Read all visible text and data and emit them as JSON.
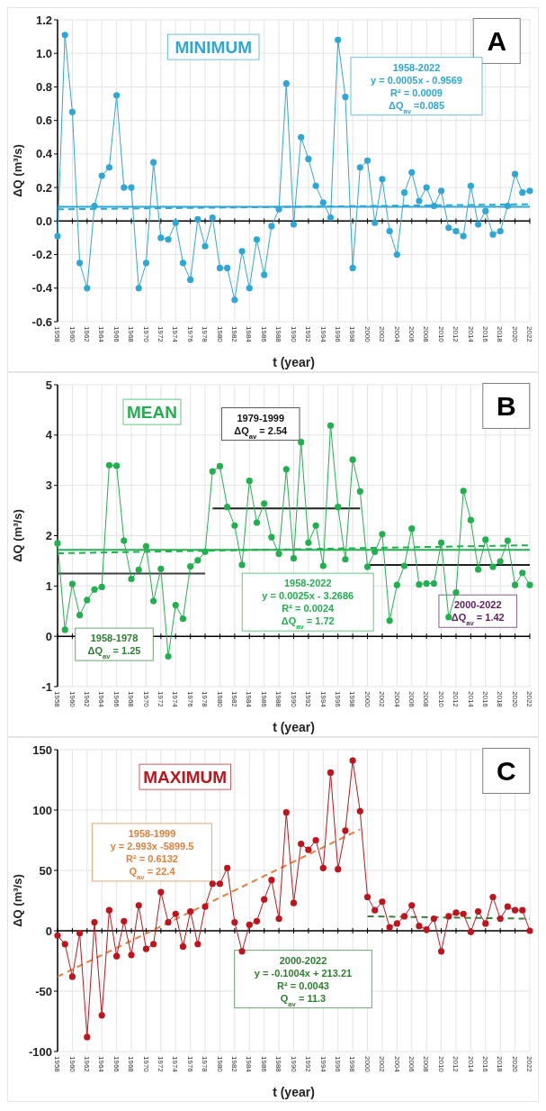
{
  "chart_data": [
    {
      "type": "line",
      "title": "MINIMUM",
      "xlabel": "t (year)",
      "ylabel": "ΔQ (m³/s)",
      "x": [
        1958,
        1959,
        1960,
        1961,
        1962,
        1963,
        1964,
        1965,
        1966,
        1967,
        1968,
        1969,
        1970,
        1971,
        1972,
        1973,
        1974,
        1975,
        1976,
        1977,
        1978,
        1979,
        1980,
        1981,
        1982,
        1983,
        1984,
        1985,
        1986,
        1987,
        1988,
        1989,
        1990,
        1991,
        1992,
        1993,
        1994,
        1995,
        1996,
        1997,
        1998,
        1999,
        2000,
        2001,
        2002,
        2003,
        2004,
        2005,
        2006,
        2007,
        2008,
        2009,
        2010,
        2011,
        2012,
        2013,
        2014,
        2015,
        2016,
        2017,
        2018,
        2019,
        2020,
        2021,
        2022
      ],
      "series": [
        {
          "color": "#2fa7d6",
          "values": [
            -0.09,
            1.11,
            0.65,
            -0.25,
            -0.4,
            0.09,
            0.27,
            0.32,
            0.75,
            0.2,
            0.2,
            -0.4,
            -0.25,
            0.35,
            -0.1,
            -0.11,
            -0.01,
            -0.25,
            -0.35,
            0.01,
            -0.15,
            0.02,
            -0.28,
            -0.28,
            -0.47,
            -0.18,
            -0.4,
            -0.11,
            -0.32,
            -0.03,
            0.07,
            0.82,
            -0.02,
            0.5,
            0.37,
            0.21,
            0.11,
            0.02,
            1.08,
            0.74,
            -0.28,
            0.32,
            0.36,
            -0.01,
            0.25,
            -0.06,
            -0.2,
            0.17,
            0.29,
            0.12,
            0.2,
            0.09,
            0.18,
            -0.04,
            -0.06,
            -0.09,
            0.21,
            -0.02,
            0.06,
            -0.08,
            -0.06,
            0.09,
            0.28,
            0.17,
            0.18
          ]
        },
        {
          "type": "line",
          "color": "#2fa7d6",
          "x": [
            1958,
            2022
          ],
          "values": [
            0.07,
            0.1
          ],
          "marker": "none",
          "line_style": "dashed"
        }
      ],
      "ref_lines": [
        {
          "axis": "y",
          "value": 0.085,
          "color": "#2fa7d6"
        }
      ],
      "annotations": [
        "A",
        "1958-2022\ny = 0.0005x - 0.9569\nR² = 0.0009\nΔQ$_{av}$ =0.085"
      ],
      "xlim": [
        1958,
        2022
      ],
      "xticks": [
        1958,
        1960,
        1962,
        1964,
        1966,
        1968,
        1970,
        1972,
        1974,
        1976,
        1978,
        1980,
        1982,
        1984,
        1986,
        1988,
        1990,
        1992,
        1994,
        1996,
        1998,
        2000,
        2002,
        2004,
        2006,
        2008,
        2010,
        2012,
        2014,
        2016,
        2018,
        2020,
        2022
      ],
      "ylim": [
        -0.6,
        1.2
      ],
      "yticks": [
        {
          "value": -0.6,
          "label": "-0.6"
        },
        {
          "value": -0.4,
          "label": "-0.4"
        },
        {
          "value": -0.2,
          "label": "-0.2"
        },
        {
          "value": 0,
          "label": "0.0"
        },
        {
          "value": 0.2,
          "label": "0.2"
        },
        {
          "value": 0.4,
          "label": "0.4"
        },
        {
          "value": 0.6,
          "label": "0.6"
        },
        {
          "value": 0.8,
          "label": "0.8"
        },
        {
          "value": 1,
          "label": "1.0"
        },
        {
          "value": 1.2,
          "label": "1.2"
        }
      ],
      "grid": true,
      "marker": "circle"
    },
    {
      "type": "line",
      "title": "MEAN",
      "xlabel": "t (year)",
      "ylabel": "ΔQ (m³/s)",
      "x": [
        1958,
        1959,
        1960,
        1961,
        1962,
        1963,
        1964,
        1965,
        1966,
        1967,
        1968,
        1969,
        1970,
        1971,
        1972,
        1973,
        1974,
        1975,
        1976,
        1977,
        1978,
        1979,
        1980,
        1981,
        1982,
        1983,
        1984,
        1985,
        1986,
        1987,
        1988,
        1989,
        1990,
        1991,
        1992,
        1993,
        1994,
        1995,
        1996,
        1997,
        1998,
        1999,
        2000,
        2001,
        2002,
        2003,
        2004,
        2005,
        2006,
        2007,
        2008,
        2009,
        2010,
        2011,
        2012,
        2013,
        2014,
        2015,
        2016,
        2017,
        2018,
        2019,
        2020,
        2021,
        2022
      ],
      "series": [
        {
          "color": "#22b04f",
          "values": [
            1.85,
            0.13,
            1.04,
            0.42,
            0.72,
            0.93,
            0.98,
            3.4,
            3.39,
            1.9,
            1.14,
            1.32,
            1.79,
            0.7,
            1.34,
            -0.4,
            0.62,
            0.35,
            1.39,
            1.51,
            1.68,
            3.28,
            3.38,
            2.57,
            2.2,
            1.42,
            3.09,
            2.26,
            2.64,
            1.97,
            1.64,
            3.32,
            1.55,
            3.86,
            1.86,
            2.2,
            1.4,
            4.19,
            2.57,
            1.53,
            3.51,
            2.88,
            1.38,
            1.68,
            2.03,
            0.31,
            1.02,
            1.4,
            2.14,
            1.03,
            1.05,
            1.05,
            1.86,
            0.38,
            0.87,
            2.89,
            2.31,
            1.33,
            1.92,
            1.38,
            1.49,
            1.9,
            1.02,
            1.26,
            1.02
          ]
        },
        {
          "type": "line",
          "color": "#22b04f",
          "x": [
            1958,
            2022
          ],
          "values": [
            1.65,
            1.81
          ],
          "marker": "none",
          "line_style": "dashed"
        },
        {
          "type": "line",
          "color": "#404040",
          "x": [
            1958,
            1978
          ],
          "values": [
            1.25,
            1.25
          ],
          "marker": "none",
          "line_style": "solid"
        },
        {
          "type": "line",
          "color": "#202020",
          "x": [
            1979,
            1999
          ],
          "values": [
            2.54,
            2.54
          ],
          "marker": "none",
          "line_style": "solid"
        },
        {
          "type": "line",
          "color": "#202020",
          "x": [
            2000,
            2022
          ],
          "values": [
            1.42,
            1.42
          ],
          "marker": "none",
          "line_style": "solid"
        }
      ],
      "ref_lines": [
        {
          "axis": "y",
          "value": 1.72,
          "color": "#22b04f"
        }
      ],
      "annotations": [
        "B",
        "1979-1999\nΔQ$_{av}$ = 2.54",
        "1958-2022\ny = 0.0025x - 3.2686\nR² = 0.0024\nΔQ$_{av}$ = 1.72",
        "1958-1978\nΔQ$_{av}$ = 1.25",
        "2000-2022\nΔQ$_{av}$ = 1.42"
      ],
      "xlim": [
        1958,
        2022
      ],
      "xticks": [
        1958,
        1960,
        1962,
        1964,
        1966,
        1968,
        1970,
        1972,
        1974,
        1976,
        1978,
        1980,
        1982,
        1984,
        1986,
        1988,
        1990,
        1992,
        1994,
        1996,
        1998,
        2000,
        2002,
        2004,
        2006,
        2008,
        2010,
        2012,
        2014,
        2016,
        2018,
        2020,
        2022
      ],
      "ylim": [
        -1,
        5
      ],
      "yticks": [
        -1,
        0,
        1,
        2,
        3,
        4,
        5
      ],
      "grid": true,
      "marker": "circle"
    },
    {
      "type": "line",
      "title": "MAXIMUM",
      "xlabel": "t (year)",
      "ylabel": "ΔQ (m³/s)",
      "x": [
        1958,
        1959,
        1960,
        1961,
        1962,
        1963,
        1964,
        1965,
        1966,
        1967,
        1968,
        1969,
        1970,
        1971,
        1972,
        1973,
        1974,
        1975,
        1976,
        1977,
        1978,
        1979,
        1980,
        1981,
        1982,
        1983,
        1984,
        1985,
        1986,
        1987,
        1988,
        1989,
        1990,
        1991,
        1992,
        1993,
        1994,
        1995,
        1996,
        1997,
        1998,
        1999,
        2000,
        2001,
        2002,
        2003,
        2004,
        2005,
        2006,
        2007,
        2008,
        2009,
        2010,
        2011,
        2012,
        2013,
        2014,
        2015,
        2016,
        2017,
        2018,
        2019,
        2020,
        2021,
        2022
      ],
      "series": [
        {
          "color": "#c0141c",
          "values": [
            -4,
            -11,
            -38,
            -2,
            -88,
            7,
            -70,
            17,
            -21,
            8,
            -20,
            21,
            -15,
            -11,
            32,
            7,
            14,
            -13,
            16,
            -11,
            20,
            39,
            39,
            52,
            7,
            -17,
            5,
            8,
            26,
            42,
            10,
            98,
            23,
            72,
            67,
            75,
            52,
            131,
            51,
            83,
            141,
            99,
            28,
            17,
            24,
            3,
            6,
            12,
            21,
            4,
            1,
            10,
            -17,
            12,
            15,
            14,
            -1,
            16,
            6,
            28,
            10,
            20,
            17,
            17,
            0
          ]
        },
        {
          "type": "line",
          "color": "#e3803e",
          "x": [
            1958,
            1999
          ],
          "values": [
            -38,
            84
          ],
          "marker": "none",
          "line_style": "dashed"
        },
        {
          "type": "line",
          "color": "#3b7f3b",
          "x": [
            2000,
            2022
          ],
          "values": [
            12,
            10
          ],
          "marker": "none",
          "line_style": "dashed"
        }
      ],
      "annotations": [
        "C",
        "1958-1999\ny = 2.993x -5899.5\nR² = 0.6132\nQ$_{av}$ = 22.4",
        "2000-2022\ny = -0.1004x + 213.21\nR² = 0.0043\nQ$_{av}$ = 11.3"
      ],
      "xlim": [
        1958,
        2022
      ],
      "xticks": [
        1958,
        1960,
        1962,
        1964,
        1966,
        1968,
        1970,
        1972,
        1974,
        1976,
        1978,
        1980,
        1982,
        1984,
        1986,
        1988,
        1990,
        1992,
        1994,
        1996,
        1998,
        2000,
        2002,
        2004,
        2006,
        2008,
        2010,
        2012,
        2014,
        2016,
        2018,
        2020,
        2022
      ],
      "ylim": [
        -100,
        150
      ],
      "yticks": [
        -100,
        -50,
        0,
        50,
        100,
        150
      ],
      "grid": true,
      "marker": "circle"
    }
  ]
}
